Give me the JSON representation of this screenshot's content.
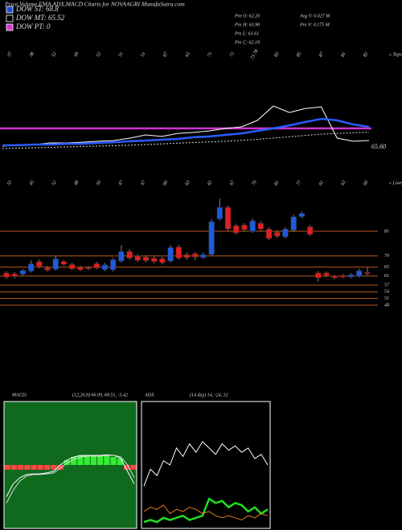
{
  "header": {
    "title": "Price,Volume,EMA,ADX,MACD Charts for NOVAAGRI MunafaSutra.com",
    "legend": [
      {
        "label": "DOW ST: 68.8",
        "color": "#1e4fd8"
      },
      {
        "label": "DOW MT: 65.52",
        "color": "#000000"
      },
      {
        "label": "DOW PT: 0",
        "color": "#d23ad2"
      }
    ],
    "stats_left": [
      "Pre O: 62.20",
      "Pre H: 63.90",
      "Pre L: 61.61",
      "Pre C: 62.19"
    ],
    "stats_right": [
      "Avg V: 0.027 M",
      "Pre V: 0.175 M"
    ]
  },
  "chart_data": [
    {
      "type": "line",
      "tops": [
        "37",
        "38",
        "52",
        "49",
        "52",
        "51",
        "51",
        "67",
        "63",
        "71",
        "72",
        "73 78",
        "83",
        "85",
        "87",
        "81",
        "82"
      ],
      "tops_title": "« Tops",
      "ylim": [
        50,
        115
      ],
      "series": [
        {
          "color": "#dddddd",
          "style": "dotted",
          "values": [
            62.4,
            62.7,
            63,
            63.3,
            63.6,
            64,
            64.3,
            64.6,
            65,
            65.5,
            66,
            66.5,
            67,
            67.5,
            68,
            68.7,
            69.5,
            70.5,
            71.5,
            72.5,
            73.5,
            74,
            74.5,
            75
          ]
        },
        {
          "color": "#ffffff",
          "style": "solid",
          "values": [
            64.2,
            65.5,
            65.5,
            66.7,
            66.7,
            67.3,
            68,
            68.6,
            70.4,
            72.9,
            71.7,
            74.1,
            74.8,
            76,
            77.9,
            79.1,
            84.1,
            95.2,
            90.2,
            93.3,
            94.6,
            70.4,
            68,
            68.6
          ]
        },
        {
          "color": "#2a5cff",
          "style": "thick",
          "values": [
            64.9,
            64.9,
            65.5,
            65.5,
            66.1,
            66.1,
            66.7,
            67.3,
            68,
            68.6,
            69.2,
            69.8,
            71.1,
            71.7,
            72.9,
            74.1,
            76,
            77.9,
            80.3,
            82.8,
            85.3,
            84.1,
            81,
            79.1
          ]
        }
      ],
      "ref_line": {
        "color": "#cc33cc",
        "value": 77.9
      },
      "annotation": "65.60"
    },
    {
      "type": "candlestick",
      "lows": [
        "55",
        "45",
        "52",
        "48",
        "50",
        "47",
        "47",
        "60",
        "63",
        "65",
        "67",
        "70",
        "81",
        "77",
        "61",
        "63",
        "60"
      ],
      "lows_title": "« Lows",
      "open": [
        62.4,
        62,
        61.8,
        63.2,
        67.5,
        64.8,
        64,
        67.5,
        66.2,
        65,
        64.8,
        66.6,
        63.9,
        63.8,
        67.7,
        72,
        70,
        69.5,
        69,
        68.8,
        67.7,
        74,
        70.6,
        71,
        69.3,
        70.6,
        86.5,
        91.7,
        83.5,
        83.8,
        81,
        84.6,
        82,
        80.6,
        78.5,
        81.4,
        87.5,
        83,
        62.4,
        62.4,
        61,
        61.3,
        60.6,
        61,
        62.6
      ],
      "high": [
        63.2,
        62.8,
        64.2,
        68,
        68.4,
        65.5,
        70.2,
        68.2,
        66.9,
        65.7,
        65.4,
        67.3,
        66.8,
        69.1,
        74.8,
        73,
        70.8,
        70.2,
        69.8,
        69.6,
        74.8,
        75,
        71.4,
        71.8,
        71.5,
        86.3,
        95.5,
        92.5,
        84.4,
        84.6,
        86.6,
        85.5,
        82.8,
        81.4,
        82.8,
        88.4,
        89.8,
        83.8,
        63.2,
        63,
        61.6,
        61.9,
        62.3,
        64.2,
        65
      ],
      "low": [
        59.8,
        60,
        61.2,
        62.6,
        64.4,
        63,
        63.4,
        65.6,
        63.6,
        63.2,
        63.6,
        64,
        63.2,
        63.1,
        67,
        68.3,
        67.3,
        67.1,
        66.8,
        66.2,
        67,
        68.3,
        68.3,
        68,
        68.6,
        70,
        85.8,
        81.2,
        79.6,
        81,
        80.3,
        81.2,
        77,
        78,
        77.8,
        80.7,
        86.8,
        79,
        58.5,
        60.6,
        59.6,
        60,
        60,
        60.4,
        61.4
      ],
      "close": [
        60.5,
        60.8,
        63.5,
        66.5,
        65,
        63.6,
        68.7,
        66.2,
        64.2,
        63.8,
        64.2,
        64.6,
        66,
        68.3,
        72,
        69,
        68,
        67.8,
        67.5,
        67,
        73.8,
        69,
        69.2,
        69.5,
        70.6,
        85.3,
        91.7,
        82,
        80.3,
        81.7,
        85.7,
        82,
        77.8,
        78.8,
        82,
        87.5,
        89,
        79.6,
        60.2,
        61.3,
        60.2,
        60.6,
        61.6,
        63.4,
        62
      ],
      "up_color": "#1e5adc",
      "down_color": "#e02020",
      "grid_color": "#b85a1a",
      "ylim": [
        44,
        96
      ],
      "yticks": [
        81,
        70,
        65,
        61,
        57,
        54,
        51,
        48
      ]
    },
    {
      "type": "macd",
      "title": "MACD:",
      "subtitle": "(12,26,9) 66.09, 69.51, -3.42",
      "background": "#0f6a1e",
      "ylim": [
        -20,
        20
      ],
      "histogram": [
        -1.5,
        -1.5,
        -1.5,
        -1.5,
        -1.5,
        -1.5,
        -1.5,
        -1.5,
        -1.5,
        1.5,
        2.5,
        3,
        3,
        3,
        3,
        2.8,
        2.5,
        2,
        -1.5,
        -1.5
      ],
      "hist_up_color": "#33ee33",
      "hist_down_color": "#ff4444",
      "series": [
        {
          "color": "#ffffff",
          "values": [
            -10,
            -6,
            -4,
            -3,
            -2.8,
            -2.8,
            -2.5,
            -2,
            0,
            1.5,
            2.5,
            3,
            3,
            3,
            3,
            3.2,
            3,
            2,
            -2,
            -6
          ]
        },
        {
          "color": "#dddddd",
          "values": [
            -12,
            -8,
            -5,
            -3.5,
            -3,
            -3,
            -2.8,
            -2.5,
            -1,
            0.5,
            1.8,
            2.5,
            2.8,
            2.8,
            2.8,
            3,
            3,
            2.5,
            0,
            -4
          ]
        }
      ]
    },
    {
      "type": "line",
      "title": "ADX",
      "subtitle": "(14 day) 14, -24, 32",
      "ylim": [
        0,
        60
      ],
      "series": [
        {
          "color": "#ffffff",
          "style": "solid",
          "values": [
            20,
            28,
            25,
            32,
            30,
            38,
            34,
            40,
            36,
            41,
            38,
            35,
            40,
            37,
            39,
            36,
            38,
            33,
            35,
            30
          ]
        },
        {
          "color": "#22dd22",
          "style": "thick",
          "values": [
            3,
            4,
            3,
            5,
            4,
            5,
            6,
            4,
            5,
            6,
            14,
            12,
            13,
            10,
            12,
            11,
            8,
            10,
            7,
            9
          ]
        },
        {
          "color": "#e07b20",
          "style": "solid",
          "values": [
            8,
            10,
            9,
            11,
            7,
            9,
            8,
            10,
            9,
            7,
            8,
            6,
            5,
            6,
            5,
            4,
            6,
            5,
            7,
            6
          ]
        }
      ]
    }
  ]
}
